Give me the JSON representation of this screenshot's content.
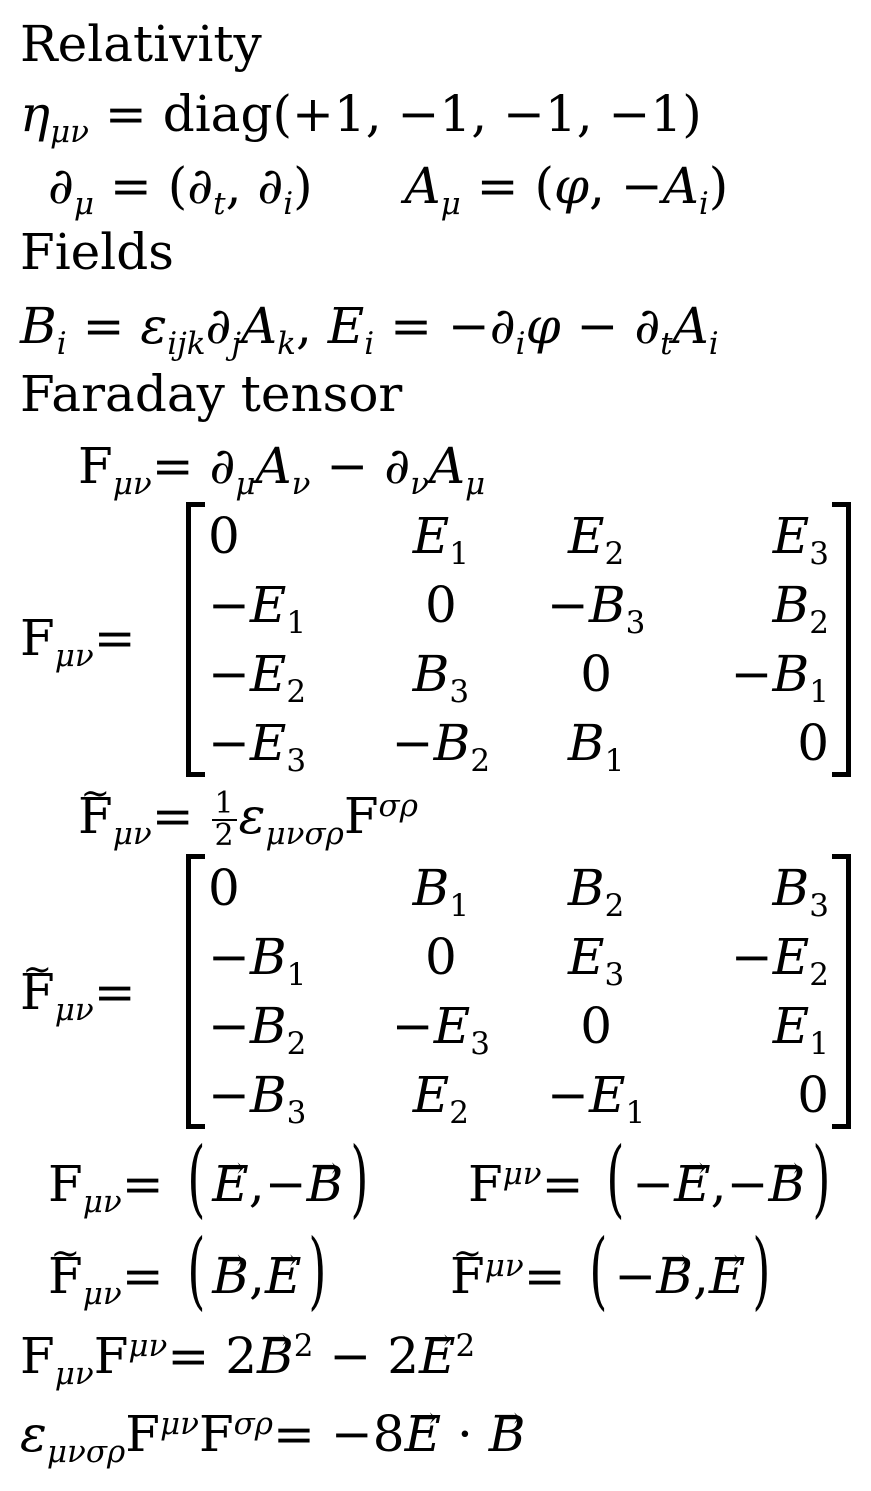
{
  "headings": {
    "relativity": "Relativity",
    "fields": "Fields",
    "faraday": "Faraday tensor"
  },
  "symbols": {
    "eta": "η",
    "mu_nu": "μν",
    "equals": "=",
    "diag": "diag(+1, −1, −1, −1)",
    "partial": "∂",
    "mu": "μ",
    "nu": "ν",
    "A": "A",
    "F": "F",
    "epsilon": "ε",
    "sigma_rho": "σρ",
    "mu_nu_sigma_rho": "μνσρ",
    "B": "B",
    "E": "E",
    "i": "i",
    "t": "t",
    "ijk": "ijk",
    "j": "j",
    "k": "k",
    "phi": "φ",
    "minus": "−",
    "comma": ",",
    "open_paren": "(",
    "close_paren": ")",
    "dot": "·",
    "half_num": "1",
    "half_den": "2",
    "two": "2",
    "minus_eight": "−8"
  },
  "matrix_F": [
    [
      "0",
      "E1",
      "E2",
      "E3"
    ],
    [
      "−E1",
      "0",
      "−B3",
      "B2"
    ],
    [
      "−E2",
      "B3",
      "0",
      "−B1"
    ],
    [
      "−E3",
      "−B2",
      "B1",
      "0"
    ]
  ],
  "matrix_F_dual": [
    [
      "0",
      "B1",
      "B2",
      "B3"
    ],
    [
      "−B1",
      "0",
      "E3",
      "−E2"
    ],
    [
      "−B2",
      "−E3",
      "0",
      "E1"
    ],
    [
      "−B3",
      "E2",
      "−E1",
      "0"
    ]
  ]
}
